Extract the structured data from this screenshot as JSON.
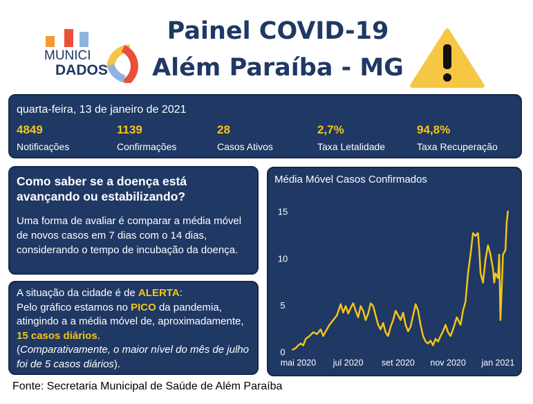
{
  "logo": {
    "line1": "MUNICI",
    "line2": "DADOS"
  },
  "header": {
    "title_line1": "Painel COVID-19",
    "title_line2": "Além Paraíba - MG"
  },
  "summary": {
    "date": "quarta-feira, 13 de janeiro de 2021",
    "stats": [
      {
        "value": "4849",
        "label": "Notificações"
      },
      {
        "value": "1139",
        "label": "Confirmações"
      },
      {
        "value": "28",
        "label": "Casos Ativos"
      },
      {
        "value": "2,7%",
        "label": "Taxa Letalidade"
      },
      {
        "value": "94,8%",
        "label": "Taxa Recuperação"
      }
    ]
  },
  "explain": {
    "heading": "Como saber se a doença está avançando ou estabilizando?",
    "body": "Uma forma de avaliar é comparar a média móvel de novos casos em 7 dias com o 14 dias, considerando o tempo de incubação da doença."
  },
  "situation": {
    "segments": [
      {
        "text": "A situação da cidade é de ",
        "style": "plain"
      },
      {
        "text": "ALERTA",
        "style": "highlight"
      },
      {
        "text": ":",
        "style": "plain"
      },
      {
        "text": "Pelo gráfico estamos no ",
        "style": "plain",
        "newline": true
      },
      {
        "text": "PICO",
        "style": "highlight"
      },
      {
        "text": " da pandemia, atingindo a a média móvel de, aproximadamente, ",
        "style": "plain"
      },
      {
        "text": "15 casos diários",
        "style": "highlight"
      },
      {
        "text": ".",
        "style": "plain"
      },
      {
        "text": "(",
        "style": "plain",
        "newline": true
      },
      {
        "text": "Comparativamente, o maior nível do mês de julho foi de 5 casos diários",
        "style": "italic"
      },
      {
        "text": ").",
        "style": "plain"
      }
    ]
  },
  "chart_data": {
    "type": "line",
    "title": "Média Móvel Casos Confirmados",
    "color": "#f5c518",
    "x": [
      4.75,
      4.9,
      5.0,
      5.1,
      5.2,
      5.3,
      5.45,
      5.6,
      5.75,
      5.9,
      6.0,
      6.1,
      6.25,
      6.4,
      6.55,
      6.7,
      6.8,
      6.9,
      7.0,
      7.1,
      7.2,
      7.3,
      7.4,
      7.5,
      7.6,
      7.7,
      7.8,
      7.9,
      8.0,
      8.1,
      8.2,
      8.3,
      8.4,
      8.5,
      8.6,
      8.7,
      8.8,
      8.9,
      9.0,
      9.1,
      9.2,
      9.3,
      9.4,
      9.5,
      9.6,
      9.7,
      9.8,
      9.9,
      10.0,
      10.1,
      10.2,
      10.3,
      10.4,
      10.5,
      10.6,
      10.7,
      10.8,
      10.9,
      11.0,
      11.1,
      11.2,
      11.35,
      11.5,
      11.6,
      11.7,
      11.8,
      11.9,
      12.0,
      12.1,
      12.2,
      12.25,
      12.3,
      12.4,
      12.5,
      12.6,
      12.7,
      12.8,
      12.85,
      12.9,
      13.0,
      13.05,
      13.1,
      13.15,
      13.2,
      13.3,
      13.35,
      13.4
    ],
    "values": [
      0.3,
      0.5,
      0.8,
      1.0,
      0.8,
      1.5,
      1.8,
      2.2,
      2.0,
      2.5,
      1.8,
      2.3,
      3.0,
      3.5,
      4.0,
      5.2,
      4.3,
      5.0,
      4.2,
      4.8,
      5.3,
      4.5,
      3.8,
      5.0,
      4.5,
      3.5,
      4.2,
      5.3,
      5.0,
      4.0,
      3.0,
      2.5,
      3.2,
      2.2,
      1.8,
      2.8,
      3.5,
      4.5,
      4.0,
      3.5,
      4.3,
      3.0,
      2.3,
      2.8,
      4.0,
      5.2,
      4.5,
      3.0,
      1.8,
      1.2,
      1.0,
      1.3,
      0.8,
      1.5,
      1.2,
      1.8,
      2.3,
      3.0,
      2.2,
      1.8,
      2.5,
      3.8,
      3.0,
      4.5,
      5.5,
      8.5,
      10.5,
      12.8,
      12.5,
      12.8,
      11.0,
      8.5,
      7.5,
      10.0,
      11.5,
      10.5,
      9.0,
      7.5,
      8.5,
      8.0,
      10.5,
      3.5,
      7.0,
      10.5,
      11.0,
      14.0,
      15.2
    ],
    "xlim": [
      4.6,
      13.6
    ],
    "xticks": [
      {
        "value": 5,
        "label": "mai 2020"
      },
      {
        "value": 7,
        "label": "jul 2020"
      },
      {
        "value": 9,
        "label": "set 2020"
      },
      {
        "value": 11,
        "label": "nov 2020"
      },
      {
        "value": 13,
        "label": "jan 2021"
      }
    ],
    "ylim": [
      0,
      16.5
    ],
    "yticks": [
      0,
      5,
      10,
      15
    ],
    "grid": false
  },
  "footer": {
    "source": "Fonte: Secretaria Municipal de Saúde de Além Paraíba"
  }
}
